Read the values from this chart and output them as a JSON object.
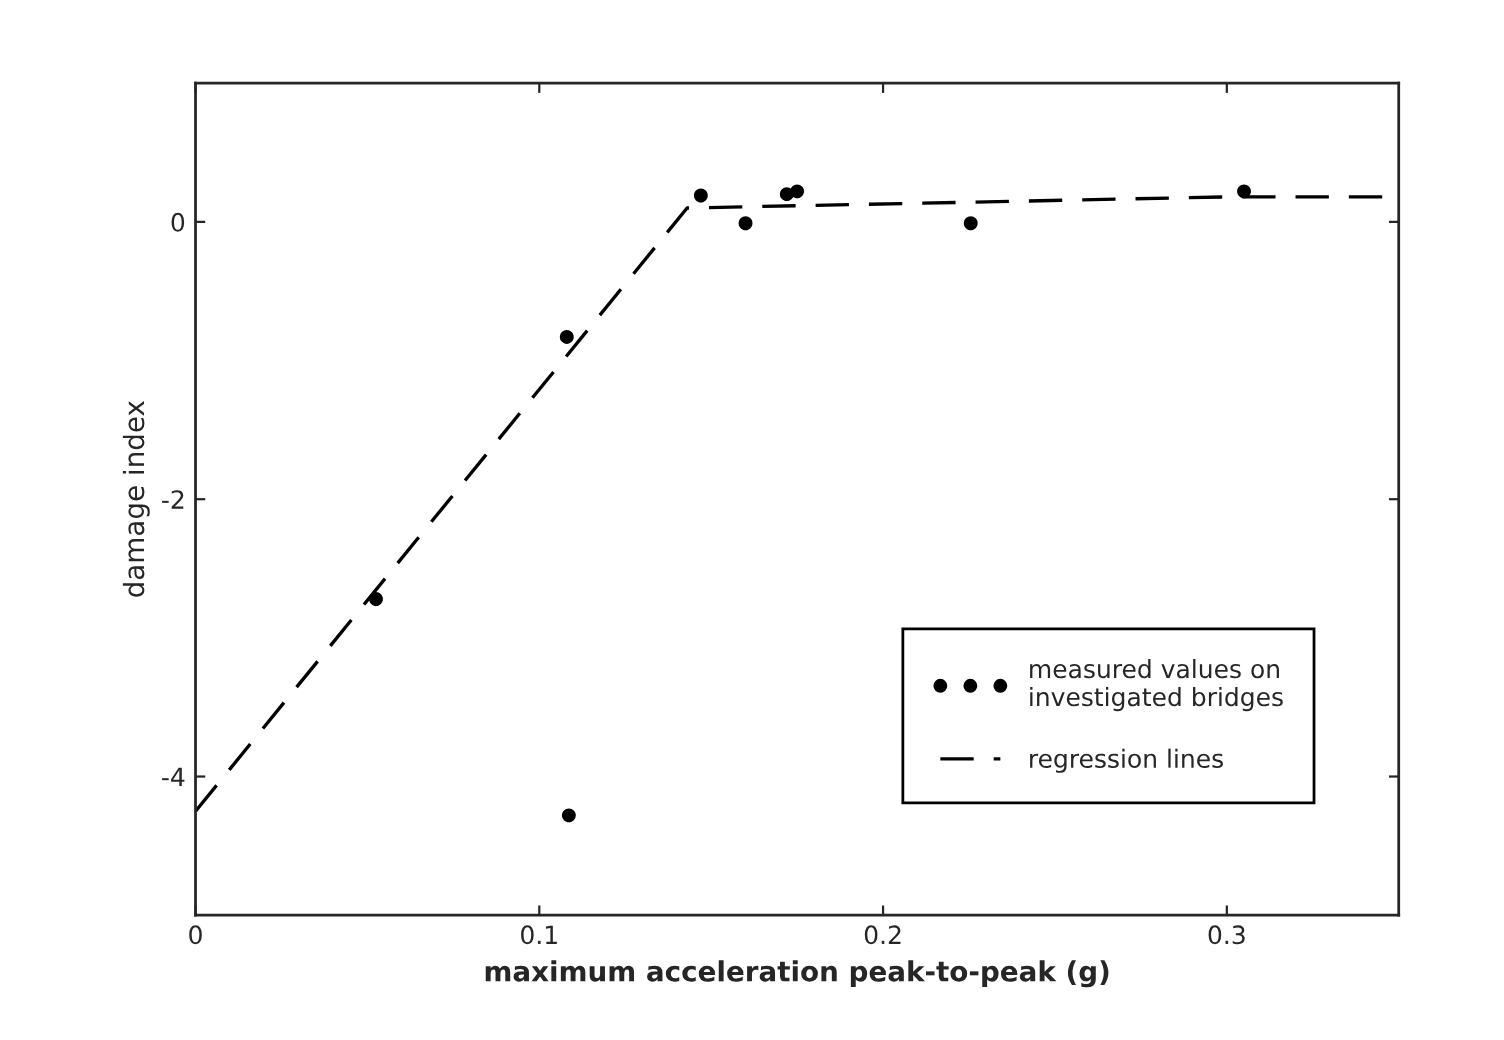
{
  "chart_data": {
    "type": "scatter",
    "xlabel": "maximum acceleration peak-to-peak (g)",
    "ylabel": "damage index",
    "series": [
      {
        "name": "measured values on\ninvestigated bridges",
        "color": "#000000",
        "marker": "circle",
        "x": [
          0.0525,
          0.108,
          0.1086,
          0.147,
          0.16,
          0.172,
          0.175,
          0.2255,
          0.305
        ],
        "values": [
          -2.72,
          -0.83,
          -4.28,
          0.19,
          -0.01,
          0.2,
          0.22,
          -0.01,
          0.22
        ]
      },
      {
        "name": "regression lines",
        "type": "line",
        "color": "#000000",
        "line_style": "dashed",
        "x": [
          0,
          0.143,
          0.3,
          0.35
        ],
        "values": [
          -4.25,
          0.1,
          0.18,
          0.18
        ]
      }
    ],
    "xlim": [
      0,
      0.35
    ],
    "ylim": [
      -5,
      1
    ],
    "xticks": [
      0,
      0.1,
      0.2,
      0.3
    ],
    "yticks": [
      -4,
      -2,
      0
    ],
    "grid": false,
    "legend": "bottom right"
  }
}
